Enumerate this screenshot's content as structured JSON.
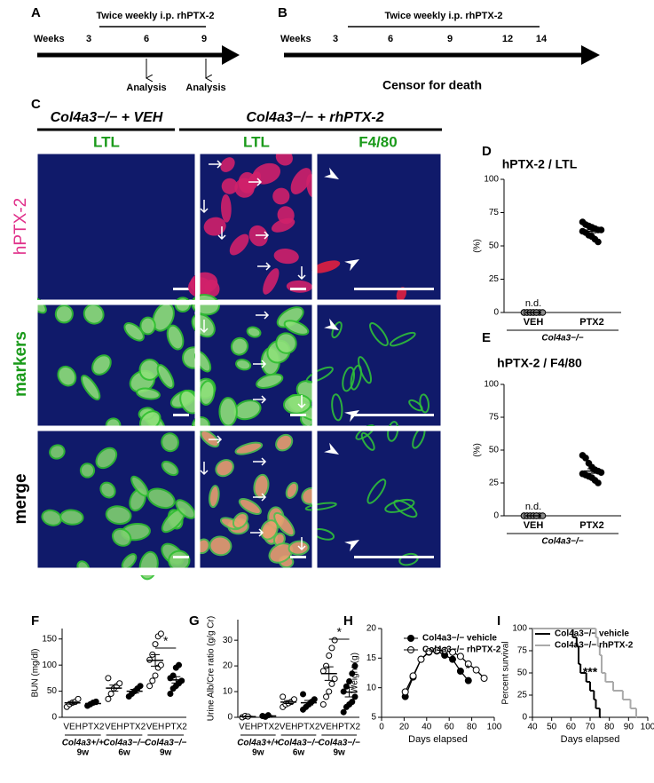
{
  "panels": {
    "a": {
      "label": "A",
      "title": "Twice weekly i.p. rhPTX-2",
      "axis_label": "Weeks",
      "ticks": [
        3,
        6,
        9
      ],
      "annotations": [
        "Analysis",
        "Analysis"
      ]
    },
    "b": {
      "label": "B",
      "title": "Twice weekly i.p. rhPTX-2",
      "axis_label": "Weeks",
      "ticks": [
        3,
        6,
        9,
        12,
        14
      ],
      "annotation": "Censor for death"
    },
    "c": {
      "label": "C",
      "headers": [
        "Col4a3−/− + VEH",
        "Col4a3−/− + rhPTX-2"
      ],
      "columns": [
        "LTL",
        "LTL",
        "F4/80"
      ],
      "rows": [
        "hPTX-2",
        "markers",
        "merge"
      ]
    }
  },
  "chart_data": [
    {
      "type": "dot",
      "label": "D",
      "title": "hPTX-2 / LTL",
      "y_label": "(%)",
      "categories": [
        "VEH",
        "PTX2"
      ],
      "values": [
        [
          0,
          0,
          0,
          0,
          0,
          0,
          0,
          0,
          0,
          0,
          0,
          0
        ],
        [
          68,
          66,
          65,
          64,
          63,
          62,
          62,
          61,
          60,
          58,
          57,
          55,
          53
        ]
      ],
      "fills": [
        "#888",
        "#000"
      ],
      "groups": [
        {
          "label": "Col4a3−/−"
        }
      ],
      "annotation": "n.d.",
      "ylim": [
        0,
        100
      ],
      "yticks": [
        0,
        25,
        50,
        75,
        100
      ]
    },
    {
      "type": "dot",
      "label": "E",
      "title": "hPTX-2 / F4/80",
      "y_label": "(%)",
      "categories": [
        "VEH",
        "PTX2"
      ],
      "values": [
        [
          0,
          0,
          0,
          0,
          0,
          0,
          0,
          0,
          0,
          0,
          0,
          0
        ],
        [
          46,
          44,
          40,
          37,
          35,
          34,
          33,
          32,
          31,
          30,
          29,
          27,
          25
        ]
      ],
      "fills": [
        "#888",
        "#000"
      ],
      "groups": [
        {
          "label": "Col4a3−/−"
        }
      ],
      "annotation": "n.d.",
      "ylim": [
        0,
        100
      ],
      "yticks": [
        0,
        25,
        50,
        75,
        100
      ]
    },
    {
      "type": "dot",
      "label": "F",
      "y_label": "BUN (mg/dl)",
      "categories": [
        "VEH",
        "PTX2",
        "VEH",
        "PTX2",
        "VEH",
        "PTX2"
      ],
      "values": [
        [
          20,
          25,
          28,
          30,
          35
        ],
        [
          22,
          25,
          28,
          30
        ],
        [
          35,
          45,
          55,
          60,
          65,
          75
        ],
        [
          40,
          45,
          50,
          55,
          60
        ],
        [
          60,
          70,
          80,
          95,
          100,
          110,
          120,
          140,
          155,
          160
        ],
        [
          45,
          55,
          60,
          65,
          70,
          75,
          80,
          95,
          100
        ]
      ],
      "fills": [
        "#fff",
        "#000",
        "#fff",
        "#000",
        "#fff",
        "#000"
      ],
      "groups": [
        {
          "label": "Col4a3+/+",
          "sublabel": "9w"
        },
        {
          "label": "Col4a3−/−",
          "sublabel": "6w"
        },
        {
          "label": "Col4a3−/−",
          "sublabel": "9w"
        }
      ],
      "significance": "*",
      "ylim": [
        0,
        170
      ],
      "yticks": [
        0,
        50,
        100,
        150
      ]
    },
    {
      "type": "dot",
      "label": "G",
      "y_label": "Urine Alb/Cre ratio (g/g Cr)",
      "categories": [
        "VEH",
        "PTX2",
        "VEH",
        "PTX2",
        "VEH",
        "PTX2"
      ],
      "values": [
        [
          0,
          0.5,
          0.3
        ],
        [
          0.5,
          0.2,
          0.8
        ],
        [
          4,
          5,
          5.5,
          6,
          7,
          8
        ],
        [
          3,
          4,
          5,
          6,
          7,
          9
        ],
        [
          5,
          8,
          10,
          13,
          15,
          18,
          20,
          24,
          27,
          30
        ],
        [
          2,
          4,
          5,
          6,
          8,
          10,
          12,
          14,
          17,
          20
        ]
      ],
      "fills": [
        "#fff",
        "#000",
        "#fff",
        "#000",
        "#fff",
        "#000"
      ],
      "groups": [
        {
          "label": "Col4a3+/+",
          "sublabel": "9w"
        },
        {
          "label": "Col4a3−/−",
          "sublabel": "6w"
        },
        {
          "label": "Col4a3−/−",
          "sublabel": "9w"
        }
      ],
      "significance": "*",
      "ylim": [
        0,
        38
      ],
      "yticks": [
        0,
        10,
        20,
        30
      ]
    },
    {
      "type": "line",
      "label": "H",
      "x_label": "Days elapsed",
      "y_label": "Weight (g)",
      "series": [
        {
          "name": "Col4a3−/− vehicle",
          "color": "#000",
          "fill": "#000",
          "x": [
            21,
            28,
            35,
            42,
            49,
            56,
            63,
            70,
            77
          ],
          "values": [
            8.5,
            11.8,
            14.8,
            16,
            16.2,
            15.5,
            14.8,
            12.8,
            11.2
          ]
        },
        {
          "name": "Col4a3−/− rhPTX-2",
          "color": "#000",
          "fill": "#fff",
          "x": [
            21,
            28,
            35,
            42,
            49,
            56,
            63,
            70,
            77,
            84,
            91
          ],
          "values": [
            9.3,
            12,
            14.8,
            16.1,
            16.3,
            16.3,
            16,
            15.3,
            14,
            13,
            11.6
          ]
        }
      ],
      "annotation": "*",
      "xlim": [
        0,
        100
      ],
      "xticks": [
        0,
        20,
        40,
        60,
        80,
        100
      ],
      "ylim": [
        5,
        20
      ],
      "yticks": [
        5,
        10,
        15,
        20
      ]
    },
    {
      "type": "step",
      "label": "I",
      "x_label": "Days elapsed",
      "y_label": "Percent survival",
      "series": [
        {
          "name": "Col4a3−/− vehicle",
          "color": "#000",
          "x": [
            40,
            61,
            63,
            64,
            65,
            68,
            70,
            72,
            73,
            75
          ],
          "values": [
            100,
            90,
            80,
            60,
            50,
            40,
            30,
            20,
            10,
            0
          ]
        },
        {
          "name": "Col4a3−/− rhPTX-2",
          "color": "#aaa",
          "x": [
            40,
            73,
            74,
            75,
            76,
            78,
            82,
            87,
            91,
            94
          ],
          "values": [
            100,
            90,
            80,
            70,
            50,
            40,
            30,
            20,
            10,
            0
          ]
        }
      ],
      "annotation": "***",
      "xlim": [
        40,
        100
      ],
      "xticks": [
        40,
        50,
        60,
        70,
        80,
        90,
        100
      ],
      "ylim": [
        0,
        100
      ],
      "yticks": [
        0,
        25,
        50,
        75,
        100
      ]
    }
  ]
}
